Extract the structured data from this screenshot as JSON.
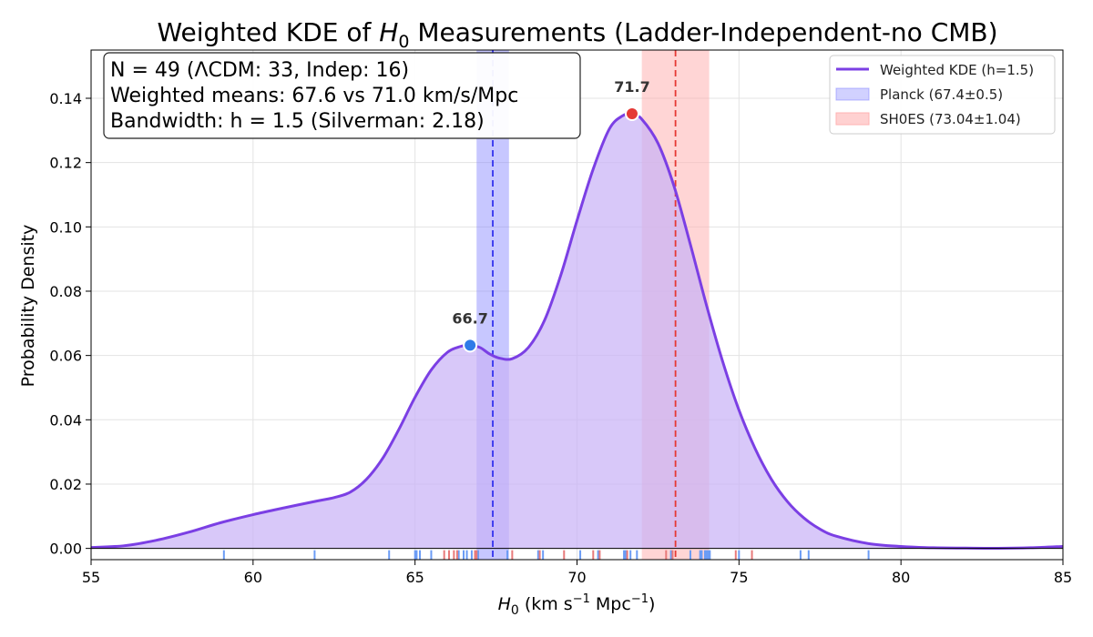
{
  "chart_data": {
    "type": "area",
    "title": {
      "prefix": "Weighted KDE of ",
      "symbol": "H",
      "subscript": "0",
      "suffix": " Measurements (Ladder-Independent-no CMB)"
    },
    "xlabel": {
      "symbol": "H",
      "subscript": "0",
      "unit_prefix": " (km s",
      "exp1": "−1",
      "unit_mid": " Mpc",
      "exp2": "−1",
      "unit_suffix": ")"
    },
    "ylabel": "Probability Density",
    "xlim": [
      55,
      85
    ],
    "ylim": [
      -0.0035,
      0.155
    ],
    "xticks": [
      55,
      60,
      65,
      70,
      75,
      80,
      85
    ],
    "xtick_labels": [
      "55",
      "60",
      "65",
      "70",
      "75",
      "80",
      "85"
    ],
    "yticks": [
      0.0,
      0.02,
      0.04,
      0.06,
      0.08,
      0.1,
      0.12,
      0.14
    ],
    "ytick_labels": [
      "0.00",
      "0.02",
      "0.04",
      "0.06",
      "0.08",
      "0.10",
      "0.12",
      "0.14"
    ],
    "grid": true,
    "kde": {
      "name": "Weighted KDE (h=1.5)",
      "color": "#7b3fe4",
      "fill_color": "#c9b3f7",
      "x": [
        55,
        56,
        57,
        58,
        59,
        60,
        61,
        62,
        62.5,
        63,
        63.5,
        64,
        64.5,
        65,
        65.5,
        66,
        66.4,
        66.7,
        67,
        67.3,
        67.6,
        68,
        68.5,
        69,
        69.5,
        70,
        70.5,
        71,
        71.4,
        71.7,
        72,
        72.5,
        73,
        73.5,
        74,
        74.5,
        75,
        75.5,
        76,
        76.5,
        77,
        77.5,
        78,
        79,
        80,
        81,
        82,
        83,
        84,
        85
      ],
      "y": [
        0.0003,
        0.0008,
        0.0025,
        0.005,
        0.008,
        0.0105,
        0.0127,
        0.0148,
        0.0158,
        0.0175,
        0.0215,
        0.028,
        0.037,
        0.047,
        0.0555,
        0.061,
        0.0628,
        0.0632,
        0.0625,
        0.0605,
        0.0592,
        0.059,
        0.0625,
        0.071,
        0.085,
        0.102,
        0.118,
        0.1305,
        0.1345,
        0.1352,
        0.1335,
        0.126,
        0.1125,
        0.0945,
        0.0755,
        0.058,
        0.043,
        0.031,
        0.0215,
        0.0145,
        0.0095,
        0.006,
        0.0038,
        0.0015,
        0.0006,
        0.0002,
        0.0001,
        5e-05,
        0.0002,
        0.0006
      ]
    },
    "peaks": [
      {
        "x": 66.7,
        "y": 0.0632,
        "label": "66.7",
        "color": "#2f7be8"
      },
      {
        "x": 71.7,
        "y": 0.1352,
        "label": "71.7",
        "color": "#e53935"
      }
    ],
    "bands": [
      {
        "name": "Planck (67.4±0.5)",
        "center": 67.4,
        "lo": 66.9,
        "hi": 67.9,
        "color": "#7a7aff",
        "line_color": "#3333ee"
      },
      {
        "name": "SH0ES (73.04±1.04)",
        "center": 73.04,
        "lo": 72.0,
        "hi": 74.08,
        "color": "#ffb3b3",
        "line_color": "#e53935"
      }
    ],
    "rug": {
      "lcdm_color": "#6b9cf5",
      "indep_color": "#e87a7a",
      "lcdm": [
        59.1,
        61.9,
        64.2,
        65.0,
        65.15,
        65.5,
        66.35,
        66.6,
        66.75,
        66.95,
        67.85,
        68.8,
        70.1,
        70.65,
        71.5,
        71.65,
        71.85,
        72.9,
        73.5,
        73.8,
        73.95,
        74.05,
        74.0,
        75.0,
        76.9,
        77.15,
        79.0,
        66.5,
        65.05,
        68.95,
        71.45,
        73.85,
        74.1
      ],
      "indep": [
        65.9,
        66.05,
        66.2,
        66.3,
        66.85,
        66.9,
        68.0,
        68.85,
        69.6,
        70.5,
        70.7,
        71.55,
        72.75,
        72.95,
        74.9,
        75.4
      ]
    },
    "legend": {
      "position": "top-right",
      "entries": [
        "Weighted KDE (h=1.5)",
        "Planck (67.4±0.5)",
        "SH0ES (73.04±1.04)"
      ]
    },
    "annotation": {
      "lines": [
        "N = 49 (ΛCDM: 33, Indep: 16)",
        "Weighted means: 67.6 vs 71.0 km/s/Mpc",
        "Bandwidth: h = 1.5 (Silverman: 2.18)"
      ]
    }
  }
}
